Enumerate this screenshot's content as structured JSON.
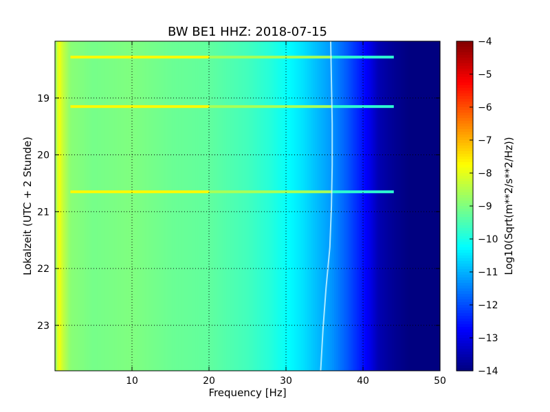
{
  "chart_data": {
    "type": "heatmap",
    "title": "BW BE1 HHZ: 2018-07-15",
    "xlabel": "Frequency [Hz]",
    "ylabel": "Lokalzeit (UTC + 2 Stunde)",
    "xlim": [
      0,
      50
    ],
    "ylim": [
      18,
      23.8
    ],
    "y_inverted": true,
    "x_ticks": [
      10,
      20,
      30,
      40,
      50
    ],
    "y_ticks": [
      19,
      20,
      21,
      22,
      23
    ],
    "grid": true,
    "grid_style": "dotted",
    "colormap": "jet",
    "colorbar": {
      "label": "Log10(Sqrt(m**2/s**2/Hz))",
      "vmin": -14,
      "vmax": -4,
      "ticks": [
        -4,
        -5,
        -6,
        -7,
        -8,
        -9,
        -10,
        -11,
        -12,
        -13,
        -14
      ]
    },
    "spectrum_profile": {
      "frequency_hz": [
        0,
        0.5,
        1,
        2,
        5,
        10,
        15,
        20,
        25,
        28,
        30,
        32,
        34,
        36,
        38,
        40,
        41,
        42,
        44,
        46,
        50
      ],
      "log10_amplitude": [
        -9.0,
        -7.8,
        -8.3,
        -8.9,
        -9.1,
        -9.0,
        -9.2,
        -9.3,
        -9.6,
        -9.9,
        -10.2,
        -10.5,
        -10.9,
        -11.3,
        -11.9,
        -12.6,
        -13.0,
        -13.5,
        -13.8,
        -14.0,
        -14.0
      ]
    },
    "bright_bands_hours": [
      18.28,
      19.15,
      20.65
    ],
    "narrowband_line_hz": [
      35.8,
      35.9,
      36.0,
      36.0,
      35.9,
      35.7,
      35.2,
      34.8,
      34.5
    ]
  }
}
